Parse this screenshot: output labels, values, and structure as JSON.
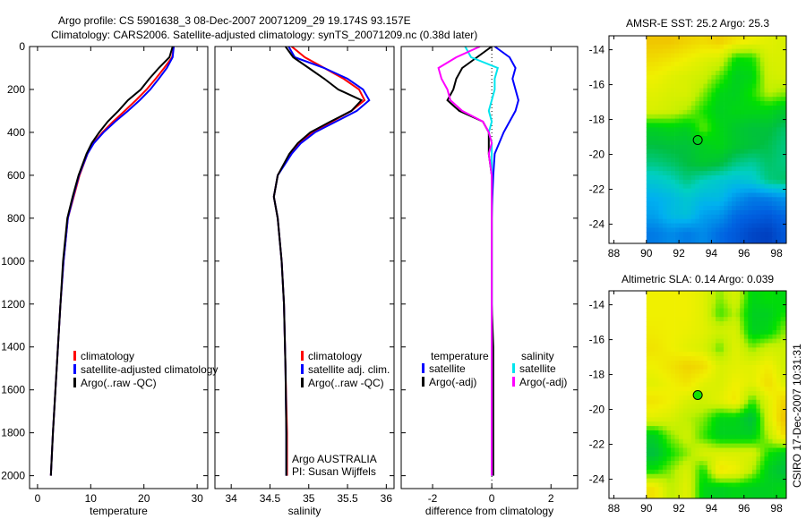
{
  "title": {
    "line1": "Argo profile: CS 5901638_3 08-Dec-2007 20071209_29 19.174S 93.157E",
    "line2": "Climatology: CARS2006. Satellite-adjusted climatology: synTS_20071209.nc (0.38d later)"
  },
  "footer_stamp": "CSIRO 17-Dec-2007 10:31:31",
  "colors": {
    "climatology": "#ff0000",
    "satellite": "#0000ff",
    "argo": "#000000",
    "sal_satellite": "#00e5ee",
    "sal_argo": "#ff00ff"
  },
  "chart_data": [
    {
      "type": "line",
      "xlabel": "temperature",
      "ylabel": "depth",
      "xlim": [
        -1.5,
        32
      ],
      "ylim": [
        2060,
        0
      ],
      "xticks": [
        0,
        10,
        20,
        30
      ],
      "yticks": [
        0,
        200,
        400,
        600,
        800,
        1000,
        1200,
        1400,
        1600,
        1800,
        2000
      ],
      "legend": [
        "climatology",
        "satellite-adjusted climatology",
        "Argo(..raw -QC)"
      ],
      "depth": [
        0,
        50,
        100,
        150,
        200,
        250,
        300,
        350,
        400,
        450,
        500,
        600,
        700,
        800,
        1000,
        1200,
        1500,
        1800,
        2000
      ],
      "series": [
        {
          "name": "climatology",
          "color": "#ff0000",
          "values": [
            25.6,
            25.3,
            23.8,
            22.2,
            20.5,
            18.5,
            16.4,
            14.2,
            12.2,
            10.5,
            9.4,
            7.9,
            6.8,
            5.7,
            4.9,
            4.3,
            3.6,
            2.9,
            2.5
          ]
        },
        {
          "name": "satellite-adjusted climatology",
          "color": "#0000ff",
          "values": [
            25.6,
            25.4,
            24.3,
            22.8,
            21.2,
            19.2,
            17.0,
            14.6,
            12.4,
            10.6,
            9.4,
            7.8,
            6.7,
            5.7,
            4.9,
            4.3,
            3.6,
            2.9,
            2.5
          ]
        },
        {
          "name": "Argo(..raw -QC)",
          "color": "#000000",
          "values": [
            25.4,
            24.8,
            22.8,
            21.0,
            19.4,
            17.0,
            15.2,
            13.2,
            11.6,
            10.2,
            9.2,
            7.7,
            6.6,
            5.6,
            4.8,
            4.3,
            3.6,
            2.9,
            2.5
          ]
        }
      ]
    },
    {
      "type": "line",
      "xlabel": "salinity",
      "xlim": [
        33.79,
        36.1
      ],
      "ylim": [
        2060,
        0
      ],
      "xticks": [
        34,
        34.5,
        35,
        35.5,
        36
      ],
      "legend": [
        "climatology",
        "satellite adj. clim.",
        "Argo(..raw -QC)"
      ],
      "annotation": [
        "Argo AUSTRALIA",
        "PI: Susan Wijffels"
      ],
      "depth": [
        0,
        50,
        100,
        150,
        200,
        250,
        300,
        350,
        400,
        450,
        500,
        600,
        700,
        800,
        1000,
        1200,
        1500,
        1800,
        2000
      ],
      "series": [
        {
          "name": "climatology",
          "color": "#ff0000",
          "values": [
            34.78,
            34.95,
            35.2,
            35.45,
            35.65,
            35.72,
            35.55,
            35.3,
            35.05,
            34.88,
            34.76,
            34.6,
            34.55,
            34.6,
            34.65,
            34.68,
            34.7,
            34.72,
            34.72
          ]
        },
        {
          "name": "satellite adj. clim.",
          "color": "#0000ff",
          "values": [
            34.74,
            34.82,
            35.2,
            35.5,
            35.7,
            35.78,
            35.62,
            35.35,
            35.08,
            34.9,
            34.78,
            34.6,
            34.55,
            34.6,
            34.65,
            34.68,
            34.7,
            34.71,
            34.71
          ]
        },
        {
          "name": "Argo(..raw -QC)",
          "color": "#000000",
          "values": [
            34.7,
            34.8,
            35.0,
            35.2,
            35.38,
            35.68,
            35.55,
            35.28,
            35.02,
            34.86,
            34.75,
            34.6,
            34.55,
            34.6,
            34.65,
            34.68,
            34.7,
            34.71,
            34.71
          ]
        }
      ]
    },
    {
      "type": "line",
      "xlabel": "difference from climatology",
      "xlim": [
        -3.06,
        2.9
      ],
      "ylim": [
        2060,
        0
      ],
      "xticks": [
        -2,
        0,
        2
      ],
      "legend_headers": [
        "temperature",
        "salinity"
      ],
      "legend": [
        "satellite",
        "Argo(-adj)",
        "satellite",
        "Argo(-adj)"
      ],
      "depth": [
        0,
        50,
        100,
        150,
        200,
        250,
        300,
        350,
        400,
        450,
        500,
        600,
        700,
        800,
        1000,
        1200,
        1400,
        1600,
        1800,
        2000
      ],
      "series": [
        {
          "name": "temperature satellite",
          "color": "#0000ff",
          "values": [
            0.1,
            0.6,
            0.8,
            0.7,
            0.8,
            0.9,
            0.8,
            0.6,
            0.4,
            0.25,
            0.1,
            0.05,
            0.02,
            0.0,
            0.0,
            0.0,
            0.0,
            0.0,
            0.0,
            0.0
          ]
        },
        {
          "name": "temperature Argo(-adj)",
          "color": "#000000",
          "values": [
            0.0,
            -0.5,
            -1.0,
            -1.2,
            -1.3,
            -1.5,
            -1.1,
            -0.3,
            -0.1,
            -0.1,
            -0.1,
            0.0,
            0.0,
            0.0,
            0.0,
            0.0,
            0.05,
            0.05,
            0.05,
            0.05
          ]
        },
        {
          "name": "salinity satellite",
          "color": "#00e5ee",
          "values": [
            -0.9,
            -0.7,
            0.2,
            0.1,
            0.1,
            0.0,
            -0.1,
            0.0,
            -0.1,
            0.0,
            0.0,
            0.0,
            0.0,
            0.0,
            0.0,
            0.0,
            0.0,
            0.0,
            0.0,
            0.0
          ]
        },
        {
          "name": "salinity Argo(-adj)",
          "color": "#ff00ff",
          "values": [
            -0.4,
            -1.2,
            -1.8,
            -1.7,
            -1.5,
            -1.4,
            -1.0,
            -0.3,
            -0.1,
            0.0,
            -0.1,
            0.0,
            0.0,
            0.0,
            0.0,
            0.0,
            0.0,
            0.0,
            0.0,
            0.0
          ]
        }
      ]
    },
    {
      "type": "heatmap",
      "title": "AMSR-E SST: 25.2 Argo: 25.3",
      "xlim": [
        87.7,
        98.6
      ],
      "ylim": [
        -25.1,
        -13.2
      ],
      "xticks": [
        88,
        90,
        92,
        94,
        96,
        98
      ],
      "yticks": [
        -14,
        -16,
        -18,
        -20,
        -22,
        -24
      ],
      "lon": [
        90.5,
        91.5,
        92.5,
        93.5,
        94.5,
        95.5,
        96.5,
        97.5,
        98.2
      ],
      "lat": [
        -13.5,
        -14.5,
        -15.5,
        -16.5,
        -17.5,
        -18.5,
        -19.5,
        -20.5,
        -21.5,
        -22.5,
        -23.5,
        -24.5
      ],
      "colorscale_range": [
        0,
        1
      ],
      "marker": {
        "lon": 93.157,
        "lat": -19.174,
        "value": 0.6
      },
      "values": [
        [
          0.95,
          0.95,
          0.92,
          0.9,
          0.93,
          0.88,
          0.85,
          0.82,
          0.8
        ],
        [
          0.9,
          0.88,
          0.85,
          0.82,
          0.8,
          0.65,
          0.66,
          0.8,
          0.8
        ],
        [
          0.85,
          0.82,
          0.8,
          0.78,
          0.7,
          0.6,
          0.62,
          0.78,
          0.8
        ],
        [
          0.82,
          0.8,
          0.8,
          0.72,
          0.62,
          0.6,
          0.66,
          0.75,
          0.72
        ],
        [
          0.8,
          0.78,
          0.74,
          0.66,
          0.6,
          0.62,
          0.62,
          0.62,
          0.58
        ],
        [
          0.6,
          0.62,
          0.6,
          0.7,
          0.62,
          0.58,
          0.56,
          0.56,
          0.52
        ],
        [
          0.55,
          0.56,
          0.56,
          0.6,
          0.62,
          0.58,
          0.56,
          0.54,
          0.5
        ],
        [
          0.5,
          0.52,
          0.55,
          0.58,
          0.56,
          0.5,
          0.48,
          0.52,
          0.5
        ],
        [
          0.42,
          0.45,
          0.5,
          0.45,
          0.42,
          0.4,
          0.42,
          0.5,
          0.52
        ],
        [
          0.35,
          0.38,
          0.42,
          0.38,
          0.38,
          0.3,
          0.25,
          0.26,
          0.3
        ],
        [
          0.32,
          0.38,
          0.4,
          0.32,
          0.3,
          0.22,
          0.2,
          0.18,
          0.22
        ],
        [
          0.25,
          0.28,
          0.25,
          0.28,
          0.22,
          0.18,
          0.12,
          0.1,
          0.18
        ]
      ]
    },
    {
      "type": "heatmap",
      "title": "Altimetric SLA: 0.14 Argo: 0.039",
      "xlim": [
        87.7,
        98.6
      ],
      "ylim": [
        -25.1,
        -13.2
      ],
      "xticks": [
        88,
        90,
        92,
        94,
        96,
        98
      ],
      "yticks": [
        -14,
        -16,
        -18,
        -20,
        -22,
        -24
      ],
      "lon": [
        90.5,
        91.5,
        92.5,
        93.5,
        94.5,
        95.5,
        96.5,
        97.5,
        98.2
      ],
      "lat": [
        -13.5,
        -14.5,
        -15.5,
        -16.5,
        -17.5,
        -18.5,
        -19.5,
        -20.5,
        -21.5,
        -22.5,
        -23.5,
        -24.5
      ],
      "colorscale_range": [
        0,
        1
      ],
      "marker": {
        "lon": 93.157,
        "lat": -19.174,
        "value": 0.66
      },
      "values": [
        [
          0.85,
          0.85,
          0.85,
          0.82,
          0.72,
          0.8,
          0.62,
          0.65,
          0.62
        ],
        [
          0.85,
          0.85,
          0.85,
          0.82,
          0.68,
          0.75,
          0.6,
          0.6,
          0.66
        ],
        [
          0.86,
          0.85,
          0.84,
          0.82,
          0.78,
          0.8,
          0.6,
          0.62,
          0.72
        ],
        [
          0.88,
          0.85,
          0.82,
          0.8,
          0.7,
          0.82,
          0.72,
          0.78,
          0.78
        ],
        [
          0.85,
          0.88,
          0.92,
          0.9,
          0.8,
          0.82,
          0.82,
          0.86,
          0.78
        ],
        [
          0.82,
          0.85,
          0.88,
          0.82,
          0.8,
          0.85,
          0.82,
          0.9,
          0.8
        ],
        [
          0.88,
          0.85,
          0.8,
          0.78,
          0.82,
          0.88,
          0.68,
          0.82,
          0.92
        ],
        [
          0.82,
          0.8,
          0.75,
          0.72,
          0.62,
          0.62,
          0.55,
          0.8,
          0.96
        ],
        [
          0.6,
          0.72,
          0.78,
          0.68,
          0.6,
          0.6,
          0.6,
          0.75,
          0.9
        ],
        [
          0.55,
          0.65,
          0.72,
          0.8,
          0.8,
          0.8,
          0.8,
          0.66,
          0.6
        ],
        [
          0.65,
          0.72,
          0.8,
          0.65,
          0.88,
          0.85,
          0.75,
          0.6,
          0.55
        ],
        [
          0.88,
          0.75,
          0.82,
          0.62,
          0.6,
          0.62,
          0.6,
          0.6,
          0.62
        ]
      ]
    }
  ]
}
